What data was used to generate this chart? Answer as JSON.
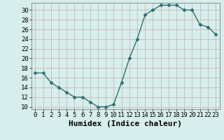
{
  "x": [
    0,
    1,
    2,
    3,
    4,
    5,
    6,
    7,
    8,
    9,
    10,
    11,
    12,
    13,
    14,
    15,
    16,
    17,
    18,
    19,
    20,
    21,
    22,
    23
  ],
  "y": [
    17,
    17,
    15,
    14,
    13,
    12,
    12,
    11,
    10,
    10,
    10.5,
    15,
    20,
    24,
    29,
    30,
    31,
    31,
    31,
    30,
    30,
    27,
    26.5,
    25
  ],
  "line_color": "#2d7070",
  "marker": "D",
  "marker_size": 2.5,
  "bg_color": "#d6eeec",
  "grid_color": "#c8b8b8",
  "xlabel": "Humidex (Indice chaleur)",
  "xlabel_fontsize": 8,
  "ylim": [
    9.5,
    31.5
  ],
  "yticks": [
    10,
    12,
    14,
    16,
    18,
    20,
    22,
    24,
    26,
    28,
    30
  ],
  "xticks": [
    0,
    1,
    2,
    3,
    4,
    5,
    6,
    7,
    8,
    9,
    10,
    11,
    12,
    13,
    14,
    15,
    16,
    17,
    18,
    19,
    20,
    21,
    22,
    23
  ],
  "tick_fontsize": 6.5,
  "linewidth": 1.0
}
